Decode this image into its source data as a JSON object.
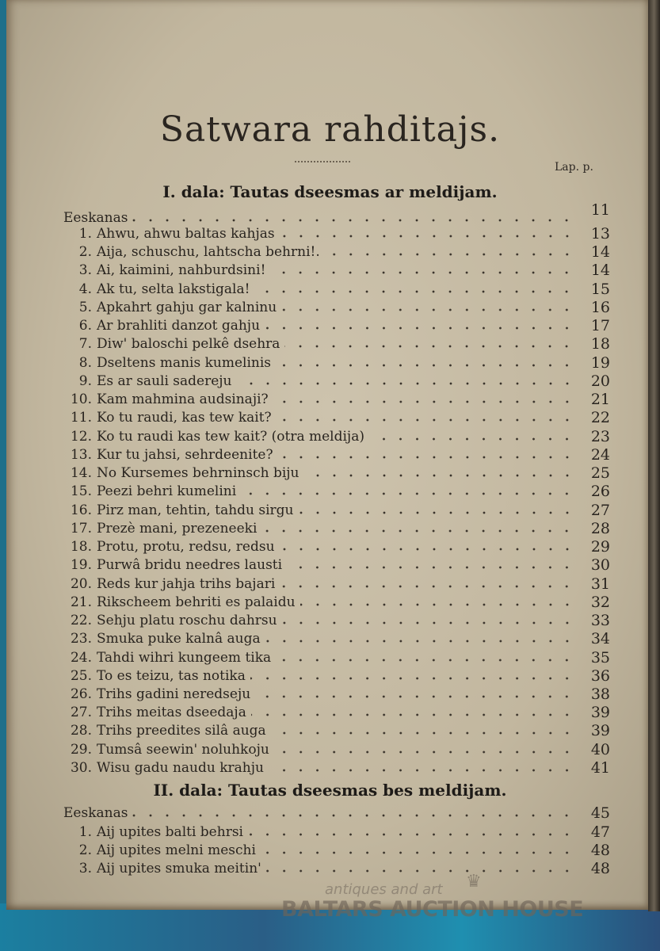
{
  "title": "Satwara rahditajs.",
  "column_header": "Lap. p.",
  "sections": [
    {
      "heading": "I. dala: Tautas dseesmas ar meldijam.",
      "intro": {
        "label": "Eeskanas",
        "page": "11"
      },
      "entries": [
        {
          "num": "",
          "title": "",
          "page": "13"
        },
        {
          "num": "1.",
          "title": "Ahwu, ahwu baltas kahjas",
          "page": "13"
        },
        {
          "num": "2.",
          "title": "Aija, schuschu, lahtscha behrni!.",
          "page": "14"
        },
        {
          "num": "3.",
          "title": "Ai, kaimini, nahburdsini!",
          "page": "14"
        },
        {
          "num": "4.",
          "title": "Ak tu, selta lakstigala!",
          "page": "15"
        },
        {
          "num": "5.",
          "title": "Apkahrt gahju gar kalninu",
          "page": "16"
        },
        {
          "num": "6.",
          "title": "Ar brahliti danzot gahju",
          "page": "17"
        },
        {
          "num": "7.",
          "title": "Diw' baloschi pelkê dsehra",
          "page": "18"
        },
        {
          "num": "8.",
          "title": "Dseltens manis kumelinis",
          "page": "19"
        },
        {
          "num": "9.",
          "title": "Es ar sauli sadereju",
          "page": "20"
        },
        {
          "num": "10.",
          "title": "Kam mahmina audsinaji?",
          "page": "21"
        },
        {
          "num": "11.",
          "title": "Ko tu raudi, kas tew kait?",
          "page": "22"
        },
        {
          "num": "12.",
          "title": "Ko tu raudi kas tew kait? (otra meldija)",
          "page": "23"
        },
        {
          "num": "13.",
          "title": "Kur tu jahsi, sehrdeenite?",
          "page": "24"
        },
        {
          "num": "14.",
          "title": "No Kursemes behrninsch biju",
          "page": "25"
        },
        {
          "num": "15.",
          "title": "Peezi behri kumelini",
          "page": "26"
        },
        {
          "num": "16.",
          "title": "Pirz man, tehtin, tahdu sirgu",
          "page": "27"
        },
        {
          "num": "17.",
          "title": "Prezè mani, prezeneeki",
          "page": "28"
        },
        {
          "num": "18.",
          "title": "Protu, protu, redsu, redsu",
          "page": "29"
        },
        {
          "num": "19.",
          "title": "Purwâ bridu needres lausti",
          "page": "30"
        },
        {
          "num": "20.",
          "title": "Reds kur jahja trihs bajari",
          "page": "31"
        },
        {
          "num": "21.",
          "title": "Rikscheem behriti es palaidu",
          "page": "32"
        },
        {
          "num": "22.",
          "title": "Sehju platu roschu dahrsu",
          "page": "33"
        },
        {
          "num": "23.",
          "title": "Smuka puke kalnâ auga",
          "page": "34"
        },
        {
          "num": "24.",
          "title": "Tahdi wihri kungeem tika",
          "page": "35"
        },
        {
          "num": "25.",
          "title": "To es teizu, tas notika",
          "page": "36"
        },
        {
          "num": "26.",
          "title": "Trihs gadini neredseju",
          "page": "38"
        },
        {
          "num": "27.",
          "title": "Trihs meitas dseedaja",
          "page": "39"
        },
        {
          "num": "28.",
          "title": "Trihs preedites silâ auga",
          "page": "39"
        },
        {
          "num": "29.",
          "title": "Tumsâ seewin' noluhkoju",
          "page": "40"
        },
        {
          "num": "30.",
          "title": "Wisu gadu naudu krahju",
          "page": "41"
        }
      ]
    },
    {
      "heading": "II. dala: Tautas dseesmas bes meldijam.",
      "intro": {
        "label": "Eeskanas",
        "page": "45"
      },
      "entries": [
        {
          "num": "1.",
          "title": "Aij upites balti behrsi",
          "page": "47"
        },
        {
          "num": "2.",
          "title": "Aij upites melni meschi",
          "page": "48"
        },
        {
          "num": "3.",
          "title": "Aij upites smuka meitin'",
          "page": "48"
        }
      ]
    }
  ],
  "watermark": {
    "line1": "antiques and art",
    "line2": "BALTARS AUCTION HOUSE"
  }
}
